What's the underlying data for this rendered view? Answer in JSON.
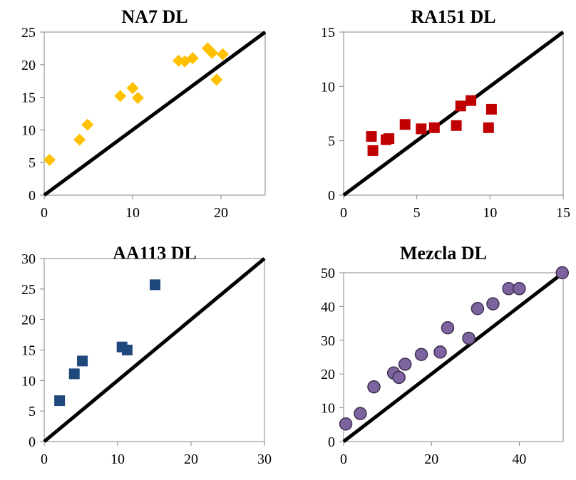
{
  "chart_data": [
    {
      "type": "scatter",
      "title": "NA7 DL",
      "marker": "diamond",
      "color": "#FFC000",
      "xlim": [
        0,
        25
      ],
      "ylim": [
        0,
        25
      ],
      "xticks": [
        "0",
        "10",
        "20"
      ],
      "yticks": [
        "0",
        "5",
        "10",
        "15",
        "20",
        "25"
      ],
      "xtick_values": [
        0,
        10,
        20
      ],
      "ytick_values": [
        0,
        5,
        10,
        15,
        20,
        25
      ],
      "reference_line": "y = x",
      "series": [
        {
          "x": [
            0.6,
            4.0,
            4.9,
            8.6,
            10.0,
            10.6,
            15.2,
            15.9,
            16.8,
            18.5,
            19.0,
            19.5,
            20.2
          ],
          "y": [
            5.4,
            8.5,
            10.8,
            15.2,
            16.4,
            14.9,
            20.6,
            20.5,
            21.0,
            22.5,
            21.8,
            17.7,
            21.6
          ]
        }
      ]
    },
    {
      "type": "scatter",
      "title": "RA151 DL",
      "marker": "square",
      "color": "#C00000",
      "xlim": [
        0,
        15
      ],
      "ylim": [
        0,
        15
      ],
      "xticks": [
        "0",
        "5",
        "10",
        "15"
      ],
      "yticks": [
        "0",
        "5",
        "10",
        "15"
      ],
      "xtick_values": [
        0,
        5,
        10,
        15
      ],
      "ytick_values": [
        0,
        5,
        10,
        15
      ],
      "reference_line": "y = x",
      "series": [
        {
          "x": [
            1.9,
            2.0,
            2.9,
            3.1,
            4.2,
            5.3,
            6.2,
            7.7,
            8.0,
            8.7,
            9.9,
            10.1
          ],
          "y": [
            5.4,
            4.1,
            5.1,
            5.2,
            6.5,
            6.1,
            6.2,
            6.4,
            8.2,
            8.7,
            6.2,
            7.9
          ]
        }
      ]
    },
    {
      "type": "scatter",
      "title": "AA113 DL",
      "marker": "square",
      "color": "#1F497D",
      "xlim": [
        0,
        30
      ],
      "ylim": [
        0,
        30
      ],
      "xticks": [
        "0",
        "10",
        "20",
        "30"
      ],
      "yticks": [
        "0",
        "5",
        "10",
        "15",
        "20",
        "25",
        "30"
      ],
      "xtick_values": [
        0,
        10,
        20,
        30
      ],
      "ytick_values": [
        0,
        5,
        10,
        15,
        20,
        25,
        30
      ],
      "reference_line": "y = x",
      "series": [
        {
          "x": [
            2.1,
            4.1,
            5.2,
            10.6,
            11.3,
            15.1
          ],
          "y": [
            6.7,
            11.1,
            13.2,
            15.5,
            15.0,
            25.7
          ]
        }
      ]
    },
    {
      "type": "scatter",
      "title": "Mezcla DL",
      "marker": "circle",
      "color": "#7E649E",
      "edge_color": "#3F3151",
      "xlim": [
        0,
        50
      ],
      "ylim": [
        0,
        50
      ],
      "xticks": [
        "0",
        "20",
        "40"
      ],
      "yticks": [
        "0",
        "10",
        "20",
        "30",
        "40",
        "50"
      ],
      "xtick_values": [
        0,
        20,
        40
      ],
      "ytick_values": [
        0,
        10,
        20,
        30,
        40,
        50
      ],
      "reference_line": "y = x",
      "series": [
        {
          "x": [
            0.5,
            3.8,
            6.9,
            11.4,
            12.6,
            14.0,
            17.7,
            22.0,
            23.7,
            28.5,
            30.5,
            34.0,
            37.6,
            40.0,
            49.8
          ],
          "y": [
            5.2,
            8.3,
            16.2,
            20.3,
            19.0,
            22.9,
            25.8,
            26.5,
            33.7,
            30.6,
            39.4,
            40.8,
            45.3,
            45.3,
            50.0
          ]
        }
      ]
    }
  ]
}
